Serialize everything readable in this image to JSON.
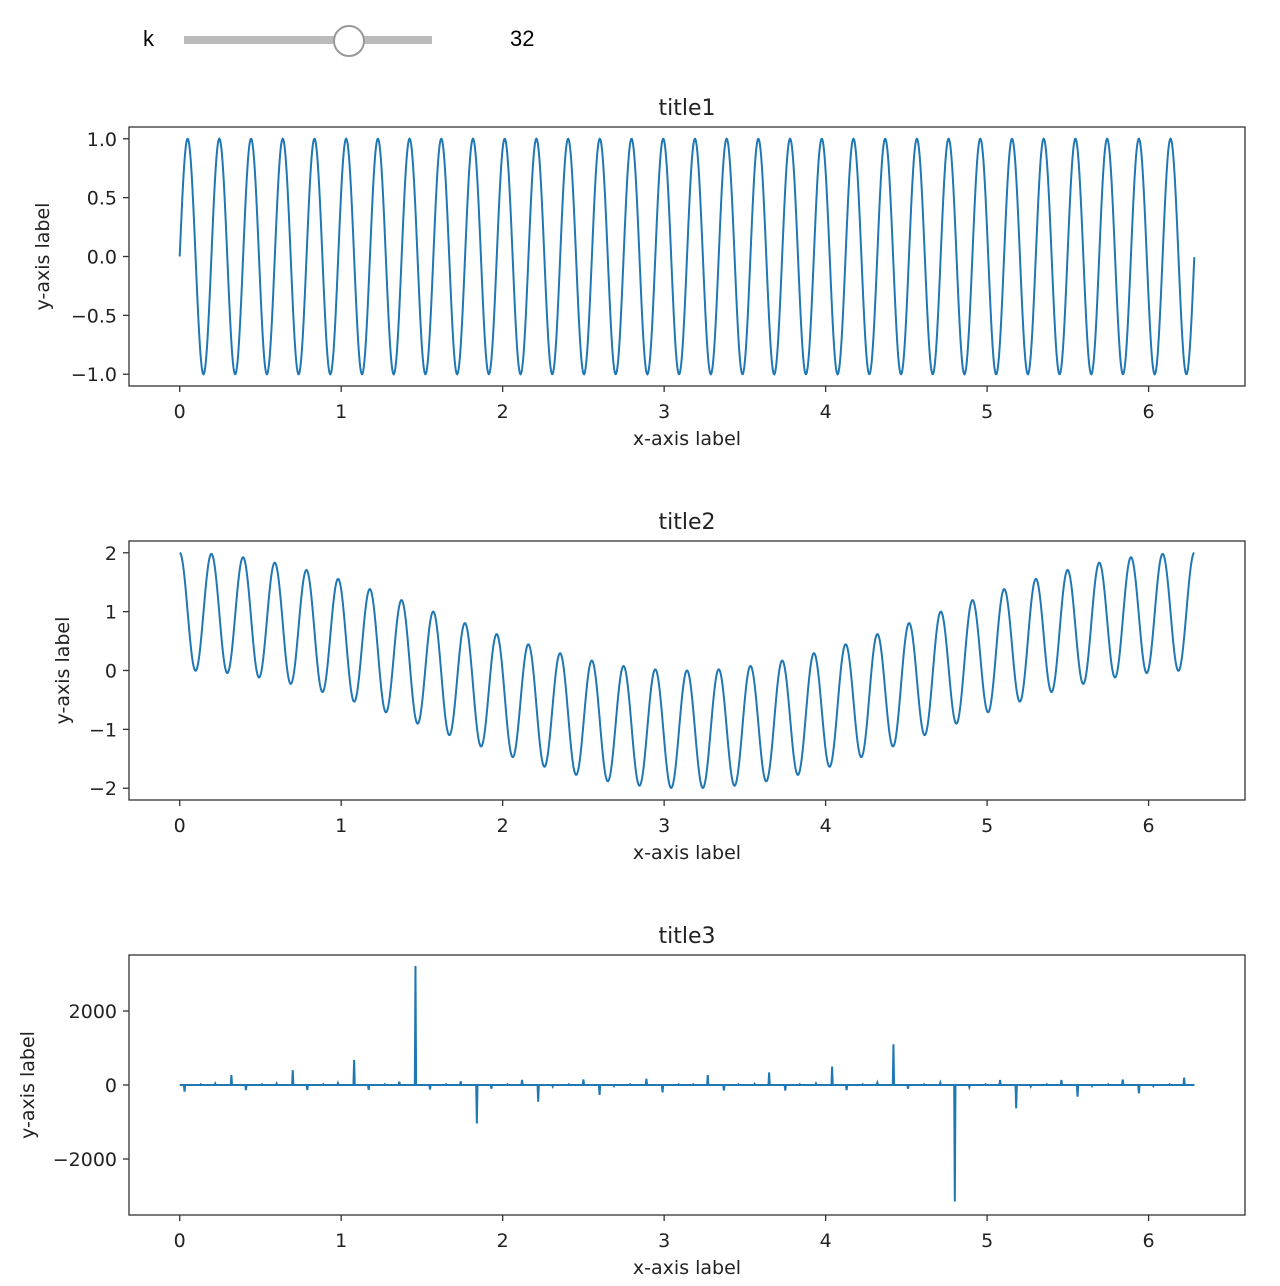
{
  "widget": {
    "label": "k",
    "value": "32",
    "position_fraction": 0.66,
    "colors": {
      "track": "#bbbbbb",
      "handle_border": "#999999"
    }
  },
  "chart_data": [
    {
      "type": "line",
      "title": "title1",
      "xlabel": "x-axis label",
      "ylabel": "y-axis label",
      "function": "sin(k*x)",
      "k": 32,
      "x_domain": [
        0,
        6.283
      ],
      "xlim": [
        -0.314,
        6.597
      ],
      "ylim": [
        -1.1,
        1.1
      ],
      "xticks": [
        0,
        1,
        2,
        3,
        4,
        5,
        6
      ],
      "yticks": [
        1.0,
        0.5,
        0.0,
        -0.5,
        -1.0
      ],
      "ytick_labels": [
        "1.0",
        "0.5",
        "0.0",
        "−0.5",
        "−1.0"
      ],
      "color": "#1f77b4",
      "grid": false
    },
    {
      "type": "line",
      "title": "title2",
      "xlabel": "x-axis label",
      "ylabel": "y-axis label",
      "function": "cos(k*x) + cos(x)",
      "k": 32,
      "x_domain": [
        0,
        6.283
      ],
      "xlim": [
        -0.314,
        6.597
      ],
      "ylim": [
        -2.2,
        2.2
      ],
      "xticks": [
        0,
        1,
        2,
        3,
        4,
        5,
        6
      ],
      "yticks": [
        2,
        1,
        0,
        -1,
        -2
      ],
      "ytick_labels": [
        "2",
        "1",
        "0",
        "−1",
        "−2"
      ],
      "color": "#1f77b4",
      "grid": false
    },
    {
      "type": "line",
      "title": "title3",
      "xlabel": "x-axis label",
      "ylabel": "y-axis label",
      "xlim": [
        -0.314,
        6.597
      ],
      "ylim": [
        -3514,
        3514
      ],
      "xticks": [
        0,
        1,
        2,
        3,
        4,
        5,
        6
      ],
      "yticks": [
        2000,
        0,
        -2000
      ],
      "ytick_labels": [
        "2000",
        "0",
        "−2000"
      ],
      "color": "#1f77b4",
      "grid": false,
      "points": [
        [
          0.03,
          -180
        ],
        [
          0.13,
          20
        ],
        [
          0.22,
          40
        ],
        [
          0.32,
          270
        ],
        [
          0.41,
          -140
        ],
        [
          0.51,
          20
        ],
        [
          0.6,
          40
        ],
        [
          0.7,
          400
        ],
        [
          0.79,
          -135
        ],
        [
          0.89,
          20
        ],
        [
          0.98,
          50
        ],
        [
          1.08,
          680
        ],
        [
          1.17,
          -130
        ],
        [
          1.27,
          20
        ],
        [
          1.36,
          90
        ],
        [
          1.46,
          3220
        ],
        [
          1.55,
          -120
        ],
        [
          1.65,
          20
        ],
        [
          1.74,
          100
        ],
        [
          1.84,
          -1040
        ],
        [
          1.93,
          -100
        ],
        [
          2.03,
          20
        ],
        [
          2.12,
          140
        ],
        [
          2.22,
          -450
        ],
        [
          2.31,
          -40
        ],
        [
          2.41,
          20
        ],
        [
          2.5,
          150
        ],
        [
          2.6,
          -270
        ],
        [
          2.69,
          -30
        ],
        [
          2.79,
          20
        ],
        [
          2.89,
          170
        ],
        [
          2.99,
          -200
        ],
        [
          3.09,
          20
        ],
        [
          3.18,
          20
        ],
        [
          3.27,
          270
        ],
        [
          3.37,
          -150
        ],
        [
          3.46,
          20
        ],
        [
          3.56,
          30
        ],
        [
          3.65,
          340
        ],
        [
          3.75,
          -150
        ],
        [
          3.84,
          20
        ],
        [
          3.94,
          40
        ],
        [
          4.04,
          500
        ],
        [
          4.13,
          -140
        ],
        [
          4.23,
          20
        ],
        [
          4.32,
          60
        ],
        [
          4.42,
          1100
        ],
        [
          4.51,
          -100
        ],
        [
          4.61,
          20
        ],
        [
          4.71,
          60
        ],
        [
          4.8,
          -3150
        ],
        [
          4.89,
          -60
        ],
        [
          4.99,
          20
        ],
        [
          5.08,
          135
        ],
        [
          5.18,
          -630
        ],
        [
          5.27,
          -40
        ],
        [
          5.37,
          20
        ],
        [
          5.46,
          135
        ],
        [
          5.56,
          -315
        ],
        [
          5.65,
          -30
        ],
        [
          5.75,
          20
        ],
        [
          5.84,
          150
        ],
        [
          5.94,
          -225
        ],
        [
          6.03,
          -30
        ],
        [
          6.13,
          20
        ],
        [
          6.22,
          200
        ],
        [
          6.28,
          0
        ]
      ]
    }
  ]
}
